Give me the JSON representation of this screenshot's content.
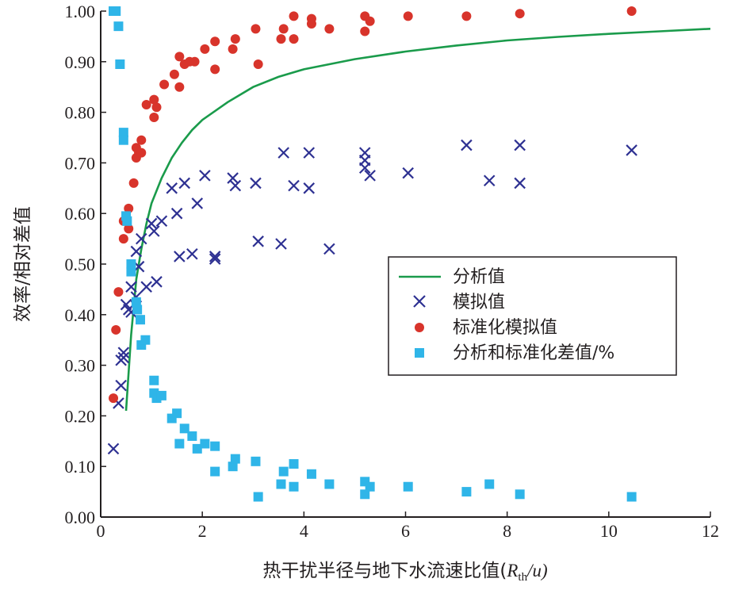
{
  "chart_data": {
    "type": "scatter",
    "xlabel": "热干扰半径与地下水流速比值(Rth/u)",
    "xlabel_parts": {
      "prefix": "热干扰半径与地下水流速比值(",
      "R": "R",
      "sub": "th",
      "suffix": "/u)"
    },
    "ylabel": "效率/相对差值",
    "xlim": [
      0,
      12
    ],
    "ylim": [
      0,
      1.0
    ],
    "x_ticks": [
      "0",
      "2",
      "4",
      "6",
      "8",
      "10",
      "12"
    ],
    "y_ticks": [
      "0.00",
      "0.10",
      "0.20",
      "0.30",
      "0.40",
      "0.50",
      "0.60",
      "0.70",
      "0.80",
      "0.90",
      "1.00"
    ],
    "grid": false,
    "legend_position": "center-right",
    "colors": {
      "analytic": "#1a9b4b",
      "simulated": "#2e3192",
      "normalized": "#d8342b",
      "difference": "#2fb5e8"
    },
    "series": [
      {
        "name": "分析值",
        "kind": "line",
        "x": [
          0.5,
          0.6,
          0.7,
          0.8,
          0.9,
          1.0,
          1.2,
          1.4,
          1.6,
          1.8,
          2.0,
          2.5,
          3.0,
          3.5,
          4.0,
          5.0,
          6.0,
          7.0,
          8.0,
          9.0,
          10.0,
          11.0,
          12.0
        ],
        "y": [
          0.21,
          0.36,
          0.47,
          0.53,
          0.58,
          0.62,
          0.67,
          0.71,
          0.74,
          0.765,
          0.785,
          0.82,
          0.85,
          0.87,
          0.885,
          0.905,
          0.92,
          0.932,
          0.942,
          0.949,
          0.955,
          0.96,
          0.965
        ]
      },
      {
        "name": "模拟值",
        "kind": "x-marker",
        "x": [
          0.25,
          0.35,
          0.4,
          0.4,
          0.45,
          0.45,
          0.5,
          0.55,
          0.6,
          0.6,
          0.7,
          0.7,
          0.75,
          0.8,
          0.9,
          1.0,
          1.05,
          1.1,
          1.2,
          1.4,
          1.5,
          1.55,
          1.65,
          1.8,
          1.9,
          2.05,
          2.25,
          2.25,
          2.6,
          2.65,
          3.05,
          3.1,
          3.55,
          3.6,
          3.8,
          4.1,
          4.1,
          4.5,
          5.2,
          5.2,
          5.2,
          5.3,
          6.05,
          7.2,
          7.65,
          8.25,
          8.25,
          10.45
        ],
        "y": [
          0.135,
          0.225,
          0.26,
          0.31,
          0.315,
          0.325,
          0.42,
          0.41,
          0.455,
          0.405,
          0.435,
          0.525,
          0.495,
          0.55,
          0.455,
          0.58,
          0.565,
          0.465,
          0.585,
          0.65,
          0.6,
          0.515,
          0.66,
          0.52,
          0.62,
          0.675,
          0.51,
          0.515,
          0.67,
          0.655,
          0.66,
          0.545,
          0.54,
          0.72,
          0.655,
          0.72,
          0.65,
          0.53,
          0.705,
          0.72,
          0.69,
          0.675,
          0.68,
          0.735,
          0.665,
          0.735,
          0.66,
          0.725
        ]
      },
      {
        "name": "标准化模拟值",
        "kind": "circle",
        "x": [
          0.25,
          0.3,
          0.35,
          0.45,
          0.45,
          0.55,
          0.55,
          0.65,
          0.7,
          0.7,
          0.75,
          0.8,
          0.8,
          0.9,
          1.05,
          1.05,
          1.1,
          1.25,
          1.45,
          1.55,
          1.55,
          1.65,
          1.75,
          1.85,
          2.05,
          2.25,
          2.25,
          2.6,
          2.65,
          3.05,
          3.1,
          3.55,
          3.6,
          3.8,
          3.8,
          4.15,
          4.15,
          4.5,
          5.2,
          5.2,
          5.3,
          6.05,
          7.2,
          8.25,
          10.45
        ],
        "y": [
          0.235,
          0.37,
          0.445,
          0.55,
          0.585,
          0.57,
          0.61,
          0.66,
          0.71,
          0.73,
          0.72,
          0.745,
          0.72,
          0.815,
          0.79,
          0.825,
          0.81,
          0.855,
          0.875,
          0.85,
          0.91,
          0.895,
          0.9,
          0.9,
          0.925,
          0.885,
          0.94,
          0.925,
          0.945,
          0.965,
          0.895,
          0.945,
          0.965,
          0.945,
          0.99,
          0.975,
          0.985,
          0.965,
          0.96,
          0.99,
          0.98,
          0.99,
          0.99,
          0.995,
          1.0
        ]
      },
      {
        "name": "分析和标准化差值/%",
        "kind": "square",
        "x": [
          0.25,
          0.3,
          0.35,
          0.38,
          0.45,
          0.45,
          0.5,
          0.52,
          0.6,
          0.6,
          0.7,
          0.72,
          0.78,
          0.8,
          0.88,
          1.05,
          1.05,
          1.1,
          1.2,
          1.4,
          1.5,
          1.55,
          1.65,
          1.8,
          1.9,
          2.05,
          2.25,
          2.25,
          2.6,
          2.65,
          3.05,
          3.1,
          3.55,
          3.6,
          3.8,
          3.8,
          4.15,
          4.5,
          5.2,
          5.2,
          5.3,
          6.05,
          7.2,
          7.65,
          8.25,
          10.45
        ],
        "y": [
          1.0,
          1.0,
          0.97,
          0.895,
          0.76,
          0.745,
          0.595,
          0.585,
          0.5,
          0.485,
          0.425,
          0.41,
          0.39,
          0.34,
          0.35,
          0.27,
          0.245,
          0.235,
          0.24,
          0.195,
          0.205,
          0.145,
          0.175,
          0.16,
          0.135,
          0.145,
          0.14,
          0.09,
          0.1,
          0.115,
          0.11,
          0.04,
          0.065,
          0.09,
          0.105,
          0.06,
          0.085,
          0.065,
          0.07,
          0.045,
          0.06,
          0.06,
          0.05,
          0.065,
          0.045,
          0.04
        ]
      }
    ]
  }
}
